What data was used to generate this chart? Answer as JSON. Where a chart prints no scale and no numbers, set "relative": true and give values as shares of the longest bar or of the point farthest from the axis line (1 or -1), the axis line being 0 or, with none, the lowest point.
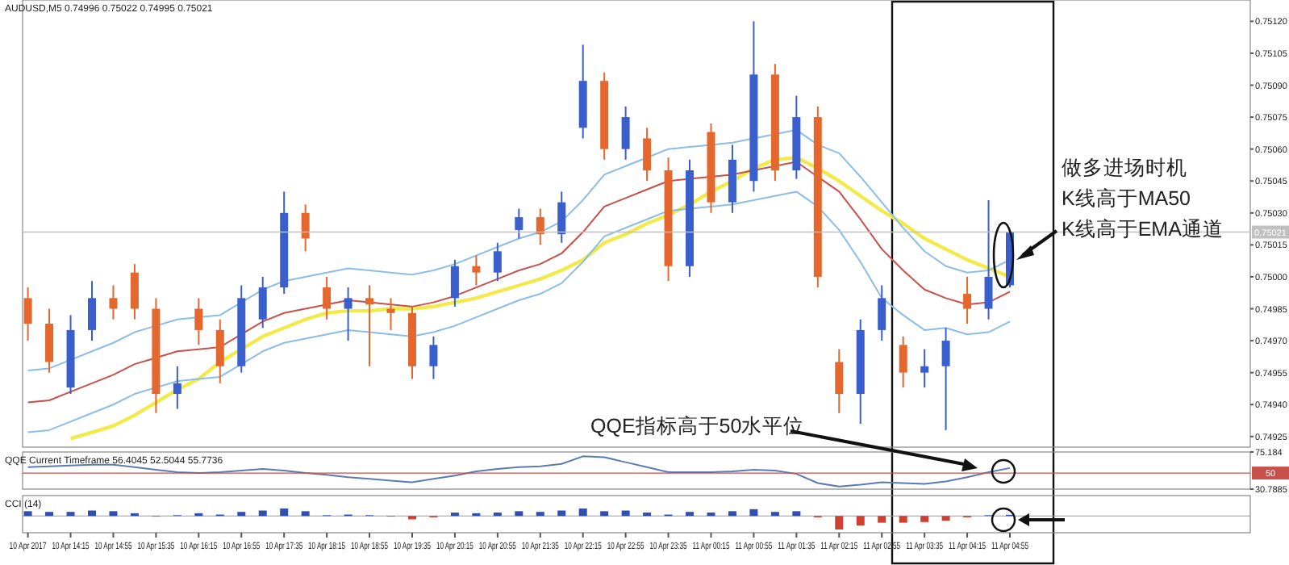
{
  "chart_data": [
    {
      "type": "candlestick",
      "title": "AUDUSD,M5  0.74996 0.75022 0.74995 0.75021",
      "tick_labels": "y",
      "categories": [
        null,
        null,
        null,
        null,
        null,
        null,
        null,
        null,
        null,
        null,
        null,
        null,
        null,
        null,
        null,
        null,
        null,
        null,
        null,
        null,
        null,
        null,
        null,
        null,
        null,
        null,
        null,
        null,
        null,
        null,
        null,
        null,
        null,
        null,
        null,
        null,
        null,
        null,
        null,
        null,
        null,
        null,
        null,
        null,
        null,
        null,
        null
      ],
      "ohlc": [
        [
          0.7499,
          0.74995,
          0.7497,
          0.74978
        ],
        [
          0.74978,
          0.74985,
          0.74955,
          0.7496
        ],
        [
          0.74948,
          0.74982,
          0.74945,
          0.74975
        ],
        [
          0.74975,
          0.74998,
          0.7497,
          0.7499
        ],
        [
          0.7499,
          0.74996,
          0.7498,
          0.74985
        ],
        [
          0.75002,
          0.75006,
          0.7498,
          0.74985
        ],
        [
          0.74985,
          0.7499,
          0.74936,
          0.74945
        ],
        [
          0.74945,
          0.74958,
          0.74938,
          0.7495
        ],
        [
          0.74985,
          0.7499,
          0.74968,
          0.74975
        ],
        [
          0.74975,
          0.7498,
          0.7495,
          0.74958
        ],
        [
          0.74958,
          0.74996,
          0.74955,
          0.7499
        ],
        [
          0.7498,
          0.75,
          0.74976,
          0.74995
        ],
        [
          0.74995,
          0.7504,
          0.74992,
          0.7503
        ],
        [
          0.7503,
          0.75034,
          0.75012,
          0.75018
        ],
        [
          0.74995,
          0.75,
          0.7498,
          0.74985
        ],
        [
          0.74985,
          0.74995,
          0.7497,
          0.7499
        ],
        [
          0.7499,
          0.74996,
          0.74958,
          0.74987
        ],
        [
          0.74985,
          0.7499,
          0.74975,
          0.74983
        ],
        [
          0.74983,
          0.74986,
          0.74952,
          0.74958
        ],
        [
          0.74958,
          0.74972,
          0.74952,
          0.74968
        ],
        [
          0.7499,
          0.75008,
          0.74986,
          0.75005
        ],
        [
          0.75005,
          0.7501,
          0.74996,
          0.75002
        ],
        [
          0.75002,
          0.75016,
          0.74998,
          0.75012
        ],
        [
          0.75022,
          0.75032,
          0.75018,
          0.75028
        ],
        [
          0.75028,
          0.75032,
          0.75015,
          0.7502
        ],
        [
          0.7502,
          0.7504,
          0.75016,
          0.75035
        ],
        [
          0.7507,
          0.75109,
          0.75065,
          0.75092
        ],
        [
          0.75092,
          0.75096,
          0.75055,
          0.7506
        ],
        [
          0.7506,
          0.7508,
          0.75055,
          0.75075
        ],
        [
          0.75065,
          0.7507,
          0.75045,
          0.7505
        ],
        [
          0.7505,
          0.75056,
          0.74998,
          0.75005
        ],
        [
          0.75005,
          0.75055,
          0.75,
          0.7505
        ],
        [
          0.75068,
          0.75072,
          0.7503,
          0.75035
        ],
        [
          0.75035,
          0.75062,
          0.7503,
          0.75055
        ],
        [
          0.75045,
          0.7512,
          0.7504,
          0.75095
        ],
        [
          0.75095,
          0.751,
          0.75045,
          0.7505
        ],
        [
          0.7505,
          0.75085,
          0.75046,
          0.75075
        ],
        [
          0.75075,
          0.7508,
          0.74995,
          0.75
        ],
        [
          0.7496,
          0.74966,
          0.74936,
          0.74945
        ],
        [
          0.74945,
          0.7498,
          0.74931,
          0.74975
        ],
        [
          0.74975,
          0.74996,
          0.7497,
          0.7499
        ],
        [
          0.74968,
          0.74972,
          0.74948,
          0.74955
        ],
        [
          0.74955,
          0.74966,
          0.74948,
          0.74958
        ],
        [
          0.74958,
          0.74976,
          0.74928,
          0.7497
        ],
        [
          0.74992,
          0.75,
          0.74978,
          0.74985
        ],
        [
          0.74985,
          0.75036,
          0.7498,
          0.75
        ],
        [
          0.74996,
          0.75022,
          0.74995,
          0.75021
        ]
      ],
      "colors": [
        "#e4672e",
        "#e4672e",
        "#3a5fcd",
        "#3a5fcd",
        "#e4672e",
        "#e4672e",
        "#e4672e",
        "#3a5fcd",
        "#e4672e",
        "#e4672e",
        "#3a5fcd",
        "#3a5fcd",
        "#3a5fcd",
        "#e4672e",
        "#e4672e",
        "#3a5fcd",
        "#e4672e",
        "#e4672e",
        "#e4672e",
        "#3a5fcd",
        "#3a5fcd",
        "#e4672e",
        "#3a5fcd",
        "#3a5fcd",
        "#e4672e",
        "#3a5fcd",
        "#3a5fcd",
        "#e4672e",
        "#3a5fcd",
        "#e4672e",
        "#e4672e",
        "#3a5fcd",
        "#e4672e",
        "#3a5fcd",
        "#3a5fcd",
        "#e4672e",
        "#3a5fcd",
        "#e4672e",
        "#e4672e",
        "#3a5fcd",
        "#3a5fcd",
        "#e4672e",
        "#3a5fcd",
        "#3a5fcd",
        "#e4672e",
        "#3a5fcd",
        "#3a5fcd"
      ],
      "series": [
        {
          "type": "line",
          "color": "#f2ea4a",
          "values": [
            null,
            null,
            0.74924,
            0.74927,
            0.7493,
            0.74935,
            0.74941,
            0.74947,
            0.74952,
            0.7496,
            0.74966,
            0.74972,
            0.74976,
            0.7498,
            0.74983,
            0.74984,
            0.74984,
            0.74985,
            0.74985,
            0.74986,
            0.74988,
            0.7499,
            0.74993,
            0.74996,
            0.74999,
            0.75003,
            0.75008,
            0.75016,
            0.7502,
            0.75025,
            0.75029,
            0.75034,
            0.7504,
            0.75045,
            0.75051,
            0.75055,
            0.75056,
            0.75051,
            0.75045,
            0.75038,
            0.75031,
            0.75025,
            0.75018,
            0.75013,
            0.75008,
            0.75004,
            0.75
          ]
        },
        {
          "type": "line",
          "color": "#8cbde8",
          "values": [
            0.74956,
            0.74957,
            0.74961,
            0.74965,
            0.74969,
            0.74974,
            0.74977,
            0.7498,
            0.74981,
            0.74982,
            0.74988,
            0.74994,
            0.74998,
            0.75,
            0.75002,
            0.75004,
            0.75003,
            0.75002,
            0.75001,
            0.75003,
            0.75006,
            0.7501,
            0.75014,
            0.75018,
            0.75021,
            0.75026,
            0.75036,
            0.75048,
            0.75052,
            0.75056,
            0.7506,
            0.75061,
            0.75062,
            0.75063,
            0.75065,
            0.75067,
            0.75069,
            0.75062,
            0.75058,
            0.75047,
            0.75035,
            0.75023,
            0.75012,
            0.75005,
            0.75002,
            0.75003,
            0.75008
          ]
        },
        {
          "type": "line",
          "color": "#c8504a",
          "values": [
            0.74941,
            0.74942,
            0.74946,
            0.7495,
            0.74954,
            0.74959,
            0.74962,
            0.74965,
            0.74966,
            0.74967,
            0.74973,
            0.74979,
            0.74983,
            0.74985,
            0.74987,
            0.74989,
            0.74988,
            0.74987,
            0.74986,
            0.74988,
            0.74991,
            0.74995,
            0.74999,
            0.75003,
            0.75006,
            0.75011,
            0.75021,
            0.75033,
            0.75037,
            0.75041,
            0.75045,
            0.75046,
            0.75047,
            0.75048,
            0.7505,
            0.75052,
            0.75054,
            0.75047,
            0.7504,
            0.75027,
            0.75013,
            0.75003,
            0.74994,
            0.7499,
            0.74987,
            0.74988,
            0.74993
          ]
        },
        {
          "type": "line",
          "color": "#8cbde8",
          "values": [
            0.74927,
            0.74928,
            0.74932,
            0.74936,
            0.7494,
            0.74945,
            0.74948,
            0.74951,
            0.74952,
            0.74953,
            0.74959,
            0.74965,
            0.74969,
            0.74971,
            0.74973,
            0.74975,
            0.74974,
            0.74973,
            0.74972,
            0.74974,
            0.74977,
            0.74981,
            0.74985,
            0.74989,
            0.74992,
            0.74997,
            0.75007,
            0.75019,
            0.75023,
            0.75027,
            0.75031,
            0.75032,
            0.75033,
            0.75034,
            0.75036,
            0.75038,
            0.7504,
            0.75033,
            0.75022,
            0.75007,
            0.7499,
            0.74982,
            0.74975,
            0.74976,
            0.74973,
            0.74974,
            0.74979
          ]
        }
      ],
      "ref_lines": [
        {
          "axis": "y",
          "value": 0.75021,
          "label": "0.75021",
          "color": "#c0c0c0"
        }
      ],
      "annotations": [
        "做多进场时机",
        "K线高于MA50",
        "K线高于EMA通道",
        "QQE指标高于50水平位"
      ],
      "ylim": [
        0.7492,
        0.7513
      ],
      "yticks": [
        {
          "value": 0.74925,
          "label": "0.74925"
        },
        {
          "value": 0.7494,
          "label": "0.74940"
        },
        {
          "value": 0.74955,
          "label": "0.74955"
        },
        {
          "value": 0.7497,
          "label": "0.74970"
        },
        {
          "value": 0.74985,
          "label": "0.74985"
        },
        {
          "value": 0.75,
          "label": "0.75000"
        },
        {
          "value": 0.75015,
          "label": "0.75015"
        },
        {
          "value": 0.7503,
          "label": "0.75030"
        },
        {
          "value": 0.75045,
          "label": "0.75045"
        },
        {
          "value": 0.7506,
          "label": "0.75060"
        },
        {
          "value": 0.75075,
          "label": "0.75075"
        },
        {
          "value": 0.7509,
          "label": "0.75090"
        },
        {
          "value": 0.75105,
          "label": "0.75105"
        },
        {
          "value": 0.7512,
          "label": "0.75120"
        }
      ]
    },
    {
      "type": "line",
      "title": "QQE Current Timeframe 56.4045 52.5044 55.7736",
      "tick_labels": "y",
      "categories": [
        null,
        null,
        null,
        null,
        null,
        null,
        null,
        null,
        null,
        null,
        null,
        null,
        null,
        null,
        null,
        null,
        null,
        null,
        null,
        null,
        null,
        null,
        null,
        null,
        null,
        null,
        null,
        null,
        null,
        null,
        null,
        null,
        null,
        null,
        null,
        null,
        null,
        null,
        null,
        null,
        null,
        null,
        null,
        null,
        null,
        null,
        null
      ],
      "series": [
        {
          "color": "#5a7bb5",
          "values": [
            57,
            58,
            59,
            60,
            60,
            57,
            54,
            51,
            50,
            51,
            53,
            55,
            53,
            50,
            48,
            45,
            43,
            41,
            39,
            43,
            47,
            52,
            55,
            57,
            58,
            61,
            70,
            69,
            63,
            57,
            51,
            51,
            51,
            52,
            54,
            53,
            49,
            38,
            34,
            36,
            39,
            38,
            37,
            40,
            45,
            51,
            56
          ]
        }
      ],
      "ref_lines": [
        {
          "axis": "y",
          "value": 50,
          "label": "50",
          "color": "#c8504a"
        }
      ],
      "ylim": [
        30.7885,
        75.184
      ],
      "yticks": [
        30.7885,
        75.184
      ]
    },
    {
      "type": "bar",
      "title": "CCI (14)",
      "relative": true,
      "categories": [
        "10 Apr 2017",
        null,
        "10 Apr 14:15",
        null,
        "10 Apr 14:55",
        null,
        "10 Apr 15:35",
        null,
        "10 Apr 16:15",
        null,
        "10 Apr 16:55",
        null,
        "10 Apr 17:35",
        null,
        "10 Apr 18:15",
        null,
        "10 Apr 18:55",
        null,
        "10 Apr 19:35",
        null,
        "10 Apr 20:15",
        null,
        "10 Apr 20:55",
        null,
        "10 Apr 21:35",
        null,
        "10 Apr 22:15",
        null,
        "10 Apr 22:55",
        null,
        "10 Apr 23:35",
        null,
        "11 Apr 00:15",
        null,
        "11 Apr 00:55",
        null,
        "11 Apr 01:35",
        null,
        "11 Apr 02:15",
        null,
        "11 Apr 02:55",
        null,
        "11 Apr 03:35",
        null,
        "11 Apr 04:15",
        null,
        "11 Apr 04:55"
      ],
      "values": [
        0.35,
        0.3,
        0.3,
        0.4,
        0.35,
        0.2,
        -0.05,
        0.05,
        0.2,
        0.1,
        0.3,
        0.4,
        0.55,
        0.35,
        0.05,
        0.1,
        0.05,
        -0.05,
        -0.25,
        -0.1,
        0.25,
        0.2,
        0.25,
        0.35,
        0.3,
        0.4,
        0.55,
        0.35,
        0.4,
        0.25,
        0.1,
        0.3,
        0.25,
        0.35,
        0.5,
        0.3,
        0.35,
        -0.1,
        -1,
        -0.7,
        -0.5,
        -0.5,
        -0.45,
        -0.35,
        -0.1,
        0.05,
        0.08
      ],
      "colors": [
        "#3050b0",
        "#3050b0",
        "#3050b0",
        "#3050b0",
        "#3050b0",
        "#3050b0",
        "#d04030",
        "#3050b0",
        "#3050b0",
        "#3050b0",
        "#3050b0",
        "#3050b0",
        "#3050b0",
        "#3050b0",
        "#3050b0",
        "#3050b0",
        "#3050b0",
        "#d04030",
        "#d04030",
        "#d04030",
        "#3050b0",
        "#3050b0",
        "#3050b0",
        "#3050b0",
        "#3050b0",
        "#3050b0",
        "#3050b0",
        "#3050b0",
        "#3050b0",
        "#3050b0",
        "#3050b0",
        "#3050b0",
        "#3050b0",
        "#3050b0",
        "#3050b0",
        "#3050b0",
        "#3050b0",
        "#d04030",
        "#d04030",
        "#d04030",
        "#d04030",
        "#d04030",
        "#d04030",
        "#d04030",
        "#d04030",
        "#3050b0",
        "#3050b0"
      ]
    }
  ]
}
